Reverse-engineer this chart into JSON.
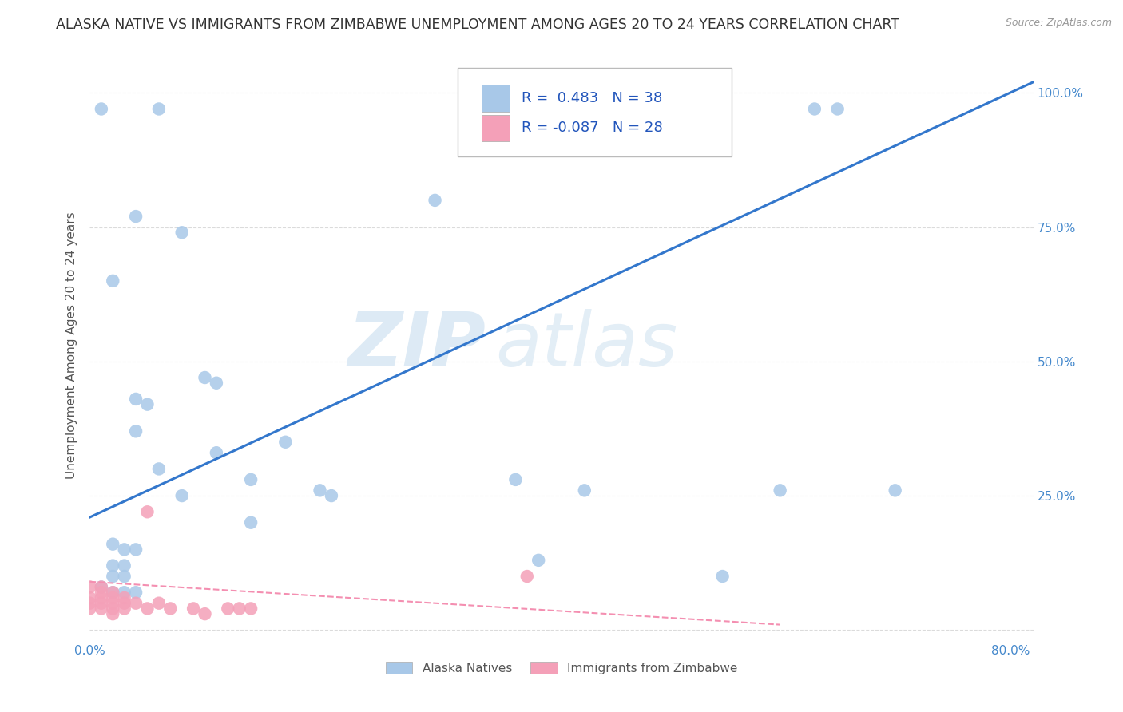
{
  "title": "ALASKA NATIVE VS IMMIGRANTS FROM ZIMBABWE UNEMPLOYMENT AMONG AGES 20 TO 24 YEARS CORRELATION CHART",
  "source": "Source: ZipAtlas.com",
  "ylabel": "Unemployment Among Ages 20 to 24 years",
  "xlim": [
    0.0,
    0.82
  ],
  "ylim": [
    -0.02,
    1.08
  ],
  "x_ticks": [
    0.0,
    0.8
  ],
  "x_tick_labels": [
    "0.0%",
    "80.0%"
  ],
  "y_ticks": [
    0.0,
    0.25,
    0.5,
    0.75,
    1.0
  ],
  "y_tick_labels_right": [
    "",
    "25.0%",
    "50.0%",
    "75.0%",
    "100.0%"
  ],
  "legend_r_blue": "0.483",
  "legend_n_blue": "38",
  "legend_r_pink": "-0.087",
  "legend_n_pink": "28",
  "blue_scatter": [
    [
      0.01,
      0.97
    ],
    [
      0.06,
      0.97
    ],
    [
      0.65,
      0.97
    ],
    [
      0.3,
      0.8
    ],
    [
      0.04,
      0.77
    ],
    [
      0.08,
      0.74
    ],
    [
      0.02,
      0.65
    ],
    [
      0.1,
      0.47
    ],
    [
      0.11,
      0.46
    ],
    [
      0.04,
      0.43
    ],
    [
      0.05,
      0.42
    ],
    [
      0.04,
      0.37
    ],
    [
      0.06,
      0.3
    ],
    [
      0.14,
      0.28
    ],
    [
      0.08,
      0.25
    ],
    [
      0.2,
      0.26
    ],
    [
      0.21,
      0.25
    ],
    [
      0.37,
      0.28
    ],
    [
      0.43,
      0.26
    ],
    [
      0.14,
      0.2
    ],
    [
      0.02,
      0.16
    ],
    [
      0.03,
      0.15
    ],
    [
      0.04,
      0.15
    ],
    [
      0.02,
      0.12
    ],
    [
      0.03,
      0.12
    ],
    [
      0.02,
      0.1
    ],
    [
      0.03,
      0.1
    ],
    [
      0.01,
      0.08
    ],
    [
      0.02,
      0.07
    ],
    [
      0.03,
      0.07
    ],
    [
      0.04,
      0.07
    ],
    [
      0.39,
      0.13
    ],
    [
      0.6,
      0.26
    ],
    [
      0.7,
      0.26
    ],
    [
      0.55,
      0.1
    ],
    [
      0.63,
      0.97
    ],
    [
      0.11,
      0.33
    ],
    [
      0.17,
      0.35
    ]
  ],
  "pink_scatter": [
    [
      0.0,
      0.08
    ],
    [
      0.0,
      0.06
    ],
    [
      0.0,
      0.05
    ],
    [
      0.0,
      0.04
    ],
    [
      0.01,
      0.08
    ],
    [
      0.01,
      0.07
    ],
    [
      0.01,
      0.06
    ],
    [
      0.01,
      0.05
    ],
    [
      0.01,
      0.04
    ],
    [
      0.02,
      0.07
    ],
    [
      0.02,
      0.06
    ],
    [
      0.02,
      0.05
    ],
    [
      0.02,
      0.04
    ],
    [
      0.02,
      0.03
    ],
    [
      0.03,
      0.06
    ],
    [
      0.03,
      0.05
    ],
    [
      0.03,
      0.04
    ],
    [
      0.04,
      0.05
    ],
    [
      0.05,
      0.04
    ],
    [
      0.05,
      0.22
    ],
    [
      0.06,
      0.05
    ],
    [
      0.07,
      0.04
    ],
    [
      0.09,
      0.04
    ],
    [
      0.1,
      0.03
    ],
    [
      0.12,
      0.04
    ],
    [
      0.13,
      0.04
    ],
    [
      0.14,
      0.04
    ],
    [
      0.38,
      0.1
    ]
  ],
  "blue_line_x": [
    0.0,
    0.82
  ],
  "blue_line_y": [
    0.21,
    1.02
  ],
  "pink_line_x": [
    0.0,
    0.6
  ],
  "pink_line_y": [
    0.09,
    0.01
  ],
  "scatter_color_blue": "#a8c8e8",
  "scatter_color_pink": "#f4a0b8",
  "line_color_blue": "#3377cc",
  "line_color_pink": "#f48fb1",
  "watermark_zip": "ZIP",
  "watermark_atlas": "atlas",
  "background_color": "#ffffff",
  "grid_color": "#cccccc",
  "title_fontsize": 12.5,
  "axis_label_fontsize": 11,
  "tick_fontsize": 11,
  "legend_fontsize": 13
}
